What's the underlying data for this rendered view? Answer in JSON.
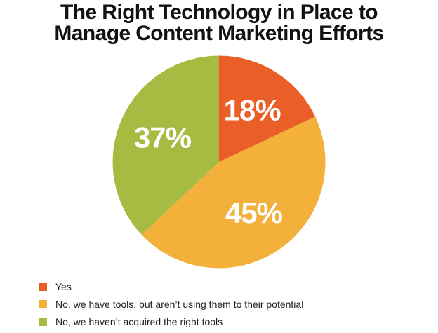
{
  "title": {
    "line1": "The Right Technology in Place to",
    "line2": "Manage Content Marketing Efforts"
  },
  "chart_data": {
    "type": "pie",
    "title": "The Right Technology in Place to Manage Content Marketing Efforts",
    "start_angle_deg": 0,
    "direction": "clockwise",
    "value_label_format": "percent",
    "value_label_color": "#ffffff",
    "legend_position": "bottom-left",
    "background_color": "#ffffff",
    "slices": [
      {
        "label": "Yes",
        "value": 18,
        "display_value": "18%",
        "color": "#EA5F28"
      },
      {
        "label": "No, we have tools, but aren’t using them to their potential",
        "value": 45,
        "display_value": "45%",
        "color": "#F3B13B"
      },
      {
        "label": "No, we haven’t acquired the right tools",
        "value": 37,
        "display_value": "37%",
        "color": "#A5BB41"
      }
    ]
  }
}
